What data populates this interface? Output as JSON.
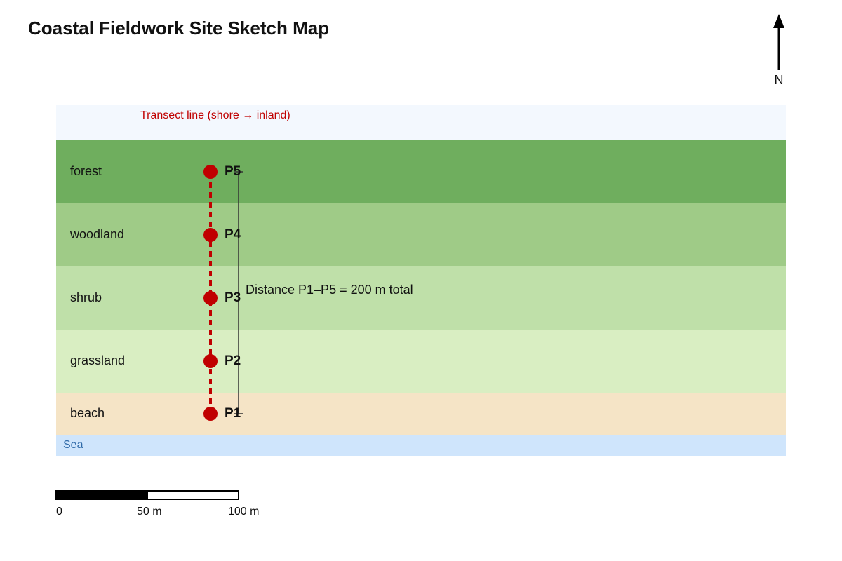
{
  "header": {
    "title": "Coastal Fieldwork Site Sketch Map"
  },
  "north_arrow": {
    "label": "N"
  },
  "map": {
    "transect_label": "Transect line (shore → inland)",
    "zones": [
      {
        "label": "forest"
      },
      {
        "label": "woodland"
      },
      {
        "label": "shrub"
      },
      {
        "label": "grassland"
      },
      {
        "label": "beach"
      }
    ],
    "sea_label": "Sea",
    "points": [
      {
        "label": "P1"
      },
      {
        "label": "P2"
      },
      {
        "label": "P3"
      },
      {
        "label": "P4"
      },
      {
        "label": "P5"
      }
    ],
    "distance_label": "Distance P1–P5 = 200 m total"
  },
  "scale_bar": {
    "labels": [
      "0",
      "50 m",
      "100 m"
    ]
  }
}
